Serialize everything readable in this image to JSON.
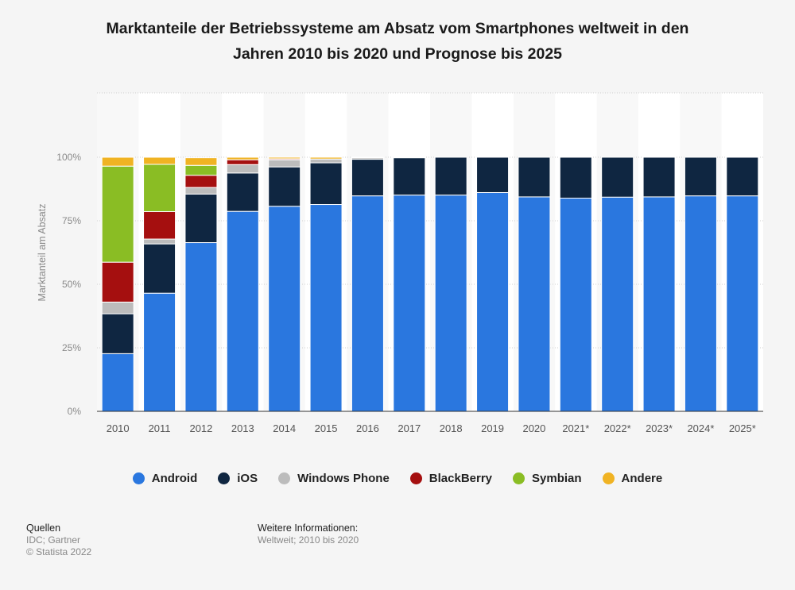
{
  "title_line1": "Marktanteile der Betriebssysteme am Absatz vom Smartphones weltweit in den",
  "title_line2": "Jahren 2010 bis 2020 und Prognose bis 2025",
  "footer": {
    "sources_heading": "Quellen",
    "sources": "IDC; Gartner",
    "copyright": "© Statista 2022",
    "info_heading": "Weitere Informationen:",
    "info": "Weltweit; 2010 bis 2020"
  },
  "colors": {
    "Android": "#2a77df",
    "iOS": "#0f2641",
    "Windows Phone": "#bcbcbc",
    "BlackBerry": "#a50f0f",
    "Symbian": "#8abd24",
    "Andere": "#f0b323"
  },
  "chart_data": {
    "type": "bar",
    "stacked": true,
    "ylabel": "Marktanteil am Absatz",
    "xlabel": "",
    "ylim": [
      0,
      100
    ],
    "yticks": [
      "0%",
      "25%",
      "50%",
      "75%",
      "100%"
    ],
    "legend_position": "bottom",
    "categories": [
      "2010",
      "2011",
      "2012",
      "2013",
      "2014",
      "2015",
      "2016",
      "2017",
      "2018",
      "2019",
      "2020",
      "2021*",
      "2022*",
      "2023*",
      "2024*",
      "2025*"
    ],
    "series": [
      {
        "name": "Android",
        "values": [
          22.7,
          46.5,
          66.4,
          78.7,
          80.7,
          81.4,
          84.8,
          85.1,
          85.1,
          86.1,
          84.4,
          83.9,
          84.3,
          84.4,
          84.8,
          84.8
        ]
      },
      {
        "name": "iOS",
        "values": [
          15.7,
          19.4,
          19.1,
          15.1,
          15.5,
          16.4,
          14.4,
          14.7,
          14.9,
          13.9,
          15.6,
          16.1,
          15.7,
          15.6,
          15.2,
          15.2
        ]
      },
      {
        "name": "Windows Phone",
        "values": [
          4.6,
          1.9,
          2.6,
          3.3,
          2.8,
          1.5,
          0.6,
          0,
          0,
          0,
          0,
          0,
          0,
          0,
          0,
          0
        ]
      },
      {
        "name": "BlackBerry",
        "values": [
          15.7,
          10.8,
          4.8,
          1.9,
          0.4,
          0,
          0,
          0,
          0,
          0,
          0,
          0,
          0,
          0,
          0,
          0
        ]
      },
      {
        "name": "Symbian",
        "values": [
          37.8,
          18.6,
          3.9,
          0,
          0,
          0,
          0,
          0,
          0,
          0,
          0,
          0,
          0,
          0,
          0,
          0
        ]
      },
      {
        "name": "Andere",
        "values": [
          3.5,
          2.8,
          3.0,
          1.0,
          0.6,
          0.7,
          0.2,
          0.2,
          0,
          0,
          0,
          0,
          0,
          0,
          0,
          0
        ]
      }
    ]
  }
}
